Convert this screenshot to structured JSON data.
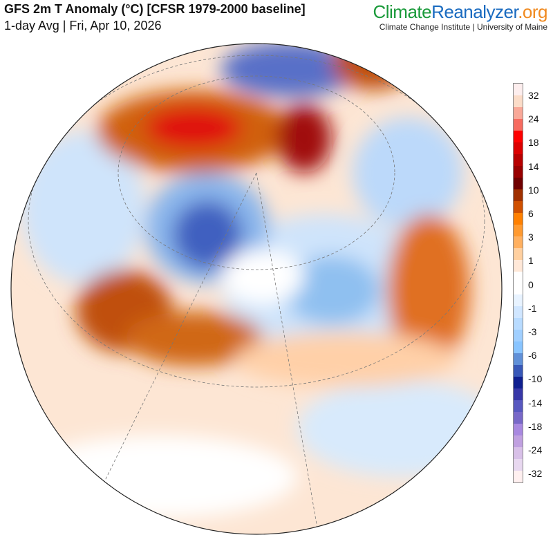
{
  "header": {
    "title": "GFS 2m T Anomaly (°C) [CFSR 1979-2000 baseline]",
    "subtitle": "1-day Avg | Fri, Apr 10, 2026"
  },
  "brand": {
    "part1": "Climate",
    "part2": "Reanalyzer",
    ".org": ".org",
    "institute": "Climate Change Institute | University of Maine"
  },
  "legend": {
    "labels": [
      "32",
      "24",
      "18",
      "14",
      "10",
      "6",
      "3",
      "1",
      "0",
      "-1",
      "-3",
      "-6",
      "-10",
      "-14",
      "-18",
      "-24",
      "-32"
    ],
    "colors": [
      "#fdeeee",
      "#fbdcc8",
      "#f9a898",
      "#f76b60",
      "#fe0000",
      "#dc0000",
      "#b80000",
      "#990000",
      "#700000",
      "#a03000",
      "#d05000",
      "#ff8000",
      "#ff9a30",
      "#ffb060",
      "#ffd0a0",
      "#ffe8d8",
      "#ffffff",
      "#ffffff",
      "#e8f3ff",
      "#d0e6ff",
      "#b8dbff",
      "#a0cfff",
      "#88c4ff",
      "#6090d8",
      "#3858b8",
      "#102090",
      "#3838a8",
      "#5858c0",
      "#7868c8",
      "#a888e0",
      "#c0a0e0",
      "#d8c0e8",
      "#e8d8f0",
      "#fff0f0"
    ]
  }
}
